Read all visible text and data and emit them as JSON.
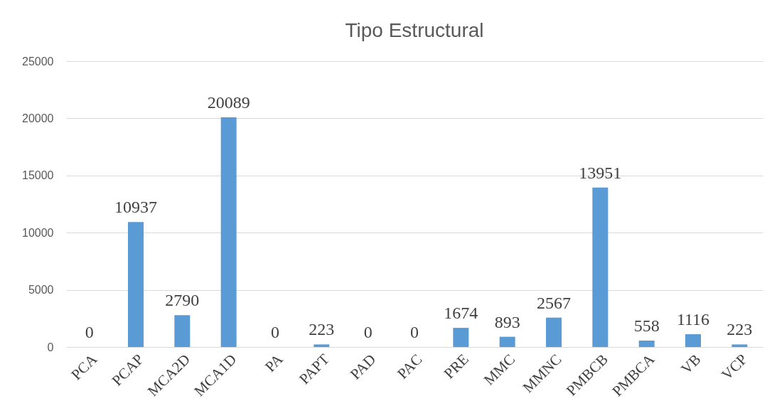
{
  "chart_data": {
    "type": "bar",
    "title": "Tipo Estructural",
    "categories": [
      "PCA",
      "PCAP",
      "MCA2D",
      "MCA1D",
      "PA",
      "PAPT",
      "PAD",
      "PAC",
      "PRE",
      "MMC",
      "MMNC",
      "PMBCB",
      "PMBCA",
      "VB",
      "VCP"
    ],
    "values": [
      0,
      10937,
      2790,
      20089,
      0,
      223,
      0,
      0,
      1674,
      893,
      2567,
      13951,
      558,
      1116,
      223
    ],
    "color": "#5b9bd5",
    "ylim": [
      0,
      25000
    ],
    "yticks": [
      0,
      5000,
      10000,
      15000,
      20000,
      25000
    ],
    "grid": "y",
    "data_labels": true
  }
}
